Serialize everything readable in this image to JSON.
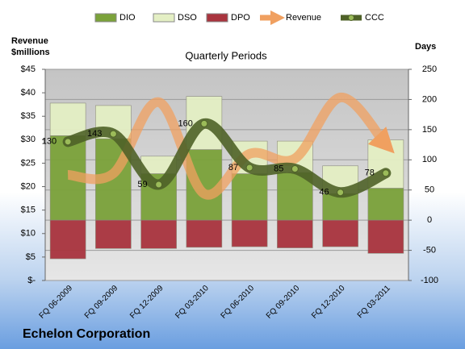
{
  "chart_data": {
    "type": "bar",
    "title": "Quarterly Periods",
    "footer": "Echelon Corporation",
    "y_label": "Revenue $millions",
    "y2_label": "Days",
    "categories": [
      "FQ 06-2009",
      "FQ 09-2009",
      "FQ 12-2009",
      "FQ 03-2010",
      "FQ 06-2010",
      "FQ 09-2010",
      "FQ 12-2010",
      "FQ 03-2011"
    ],
    "ylim": [
      0,
      45
    ],
    "yticks": [
      {
        "value": 0,
        "label": "$-"
      },
      {
        "value": 5,
        "label": "$5"
      },
      {
        "value": 10,
        "label": "$10"
      },
      {
        "value": 15,
        "label": "$15"
      },
      {
        "value": 20,
        "label": "$20"
      },
      {
        "value": 25,
        "label": "$25"
      },
      {
        "value": 30,
        "label": "$30"
      },
      {
        "value": 35,
        "label": "$35"
      },
      {
        "value": 40,
        "label": "$40"
      },
      {
        "value": 45,
        "label": "$45"
      }
    ],
    "y2lim": [
      -100,
      250
    ],
    "y2ticks": [
      -100,
      -50,
      0,
      50,
      100,
      150,
      200,
      250
    ],
    "grid": true,
    "series": [
      {
        "name": "DIO",
        "type": "bar",
        "axis": "y2",
        "color": "#7ba23a",
        "values": [
          140,
          135,
          77,
          117,
          77,
          79,
          44,
          53
        ]
      },
      {
        "name": "DSO",
        "type": "bar",
        "axis": "y2",
        "color": "#e4efc4",
        "values": [
          54,
          55,
          29,
          88,
          54,
          52,
          46,
          80
        ]
      },
      {
        "name": "DPO",
        "type": "bar",
        "axis": "y2",
        "color": "#a9343e",
        "values": [
          -64,
          -47,
          -47,
          -45,
          -44,
          -46,
          -44,
          -55
        ]
      },
      {
        "name": "Revenue",
        "type": "line",
        "axis": "y",
        "color": "#f0a060",
        "values": [
          22.5,
          22.8,
          38,
          18.5,
          27,
          26,
          39,
          29
        ]
      },
      {
        "name": "CCC",
        "type": "line",
        "axis": "y2",
        "color": "#4f6228",
        "values": [
          130,
          143,
          59,
          160,
          87,
          85,
          46,
          78
        ]
      }
    ]
  }
}
